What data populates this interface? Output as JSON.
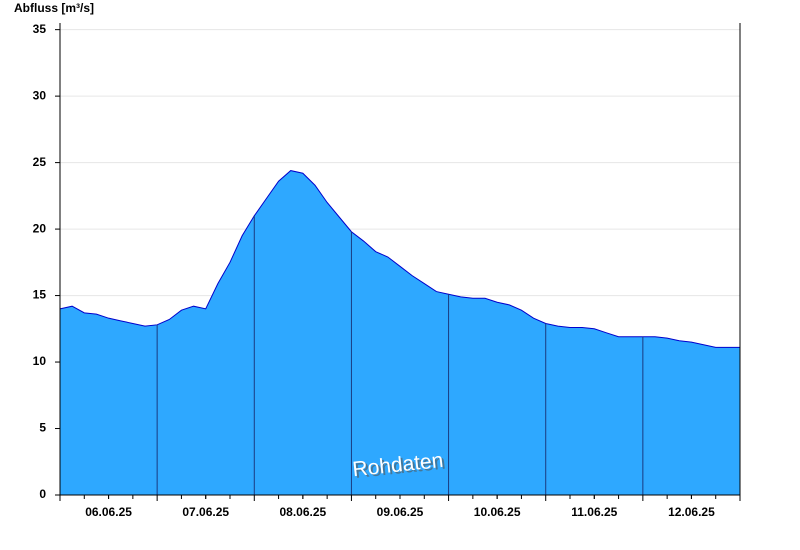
{
  "chart_data": {
    "type": "area",
    "y_label": "Abfluss [m³/s]",
    "annotation": "Rohdaten",
    "x": [
      0,
      0.125,
      0.25,
      0.375,
      0.5,
      0.625,
      0.75,
      0.875,
      1,
      1.125,
      1.25,
      1.375,
      1.5,
      1.625,
      1.75,
      1.875,
      2,
      2.125,
      2.25,
      2.375,
      2.5,
      2.625,
      2.75,
      2.875,
      3,
      3.125,
      3.25,
      3.375,
      3.5,
      3.625,
      3.75,
      3.875,
      4,
      4.125,
      4.25,
      4.375,
      4.5,
      4.625,
      4.75,
      4.875,
      5,
      5.125,
      5.25,
      5.375,
      5.5,
      5.625,
      5.75,
      5.875,
      6,
      6.125,
      6.25,
      6.375,
      6.5,
      6.625,
      6.75,
      6.875,
      7
    ],
    "series": [
      {
        "name": "Abfluss",
        "color": "#2ea8ff",
        "line_color": "#0000cc",
        "values": [
          14.0,
          14.2,
          13.7,
          13.6,
          13.3,
          13.1,
          12.9,
          12.7,
          12.8,
          13.2,
          13.9,
          14.2,
          14.0,
          15.9,
          17.5,
          19.5,
          21.0,
          22.3,
          23.6,
          24.4,
          24.2,
          23.3,
          22.0,
          20.9,
          19.8,
          19.1,
          18.3,
          17.9,
          17.2,
          16.5,
          15.9,
          15.3,
          15.1,
          14.9,
          14.8,
          14.8,
          14.5,
          14.3,
          13.9,
          13.3,
          12.9,
          12.7,
          12.6,
          12.6,
          12.5,
          12.2,
          11.9,
          11.9,
          11.9,
          11.9,
          11.8,
          11.6,
          11.5,
          11.3,
          11.1,
          11.1,
          11.1
        ]
      }
    ],
    "xlim": [
      0,
      7
    ],
    "xticks": [
      {
        "value": 0.5,
        "label": "06.06.25"
      },
      {
        "value": 1.5,
        "label": "07.06.25"
      },
      {
        "value": 2.5,
        "label": "08.06.25"
      },
      {
        "value": 3.5,
        "label": "09.06.25"
      },
      {
        "value": 4.5,
        "label": "10.06.25"
      },
      {
        "value": 5.5,
        "label": "11.06.25"
      },
      {
        "value": 6.5,
        "label": "12.06.25"
      }
    ],
    "ylim": [
      0,
      35.5
    ],
    "yticks": [
      0,
      5,
      10,
      15,
      20,
      25,
      30,
      35
    ],
    "grid": true
  }
}
